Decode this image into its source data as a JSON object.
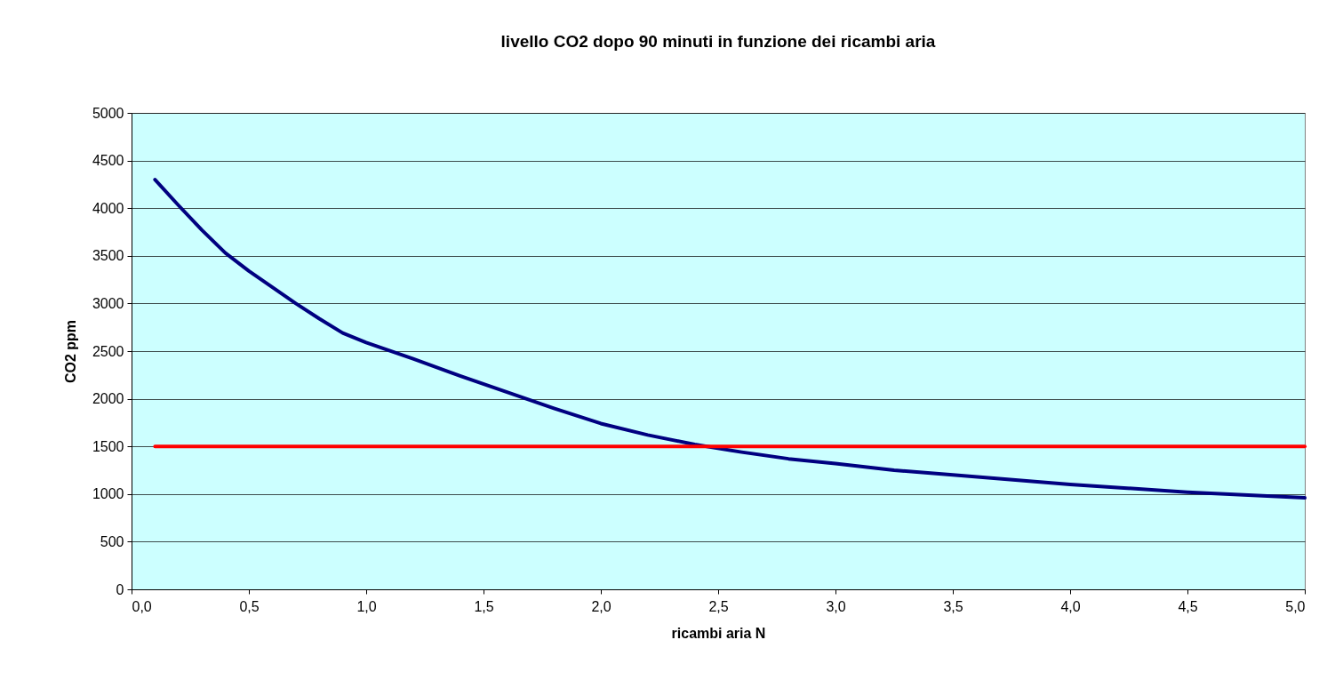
{
  "chart_data": {
    "type": "line",
    "title": "livello CO2 dopo 90 minuti in funzione dei ricambi aria",
    "xlabel": "ricambi aria N",
    "ylabel": "CO2 ppm",
    "series": [
      {
        "color": "#000080",
        "x": [
          0.1,
          0.2,
          0.3,
          0.4,
          0.5,
          0.6,
          0.7,
          0.8,
          0.9,
          1.0,
          1.2,
          1.4,
          1.6,
          1.8,
          2.0,
          2.2,
          2.4,
          2.6,
          2.8,
          3.0,
          3.25,
          3.5,
          4.0,
          4.5,
          5.0
        ],
        "values": [
          4300,
          4030,
          3770,
          3530,
          3340,
          3170,
          3000,
          2840,
          2690,
          2590,
          2420,
          2240,
          2070,
          1900,
          1740,
          1620,
          1520,
          1440,
          1370,
          1320,
          1250,
          1200,
          1100,
          1020,
          960
        ]
      },
      {
        "color": "#ff0000",
        "x": [
          0.1,
          5.0
        ],
        "values": [
          1500,
          1500
        ]
      }
    ],
    "xlim": [
      0,
      5
    ],
    "xticks": [
      {
        "value": 0,
        "label": "0,0"
      },
      {
        "value": 0.5,
        "label": "0,5"
      },
      {
        "value": 1,
        "label": "1,0"
      },
      {
        "value": 1.5,
        "label": "1,5"
      },
      {
        "value": 2,
        "label": "2,0"
      },
      {
        "value": 2.5,
        "label": "2,5"
      },
      {
        "value": 3,
        "label": "3,0"
      },
      {
        "value": 3.5,
        "label": "3,5"
      },
      {
        "value": 4,
        "label": "4,0"
      },
      {
        "value": 4.5,
        "label": "4,5"
      },
      {
        "value": 5,
        "label": "5,0"
      }
    ],
    "ylim": [
      0,
      5000
    ],
    "yticks": [
      0,
      500,
      1000,
      1500,
      2000,
      2500,
      3000,
      3500,
      4000,
      4500,
      5000
    ],
    "grid": "y",
    "legend": false,
    "marker": "none",
    "line_style": "solid"
  }
}
